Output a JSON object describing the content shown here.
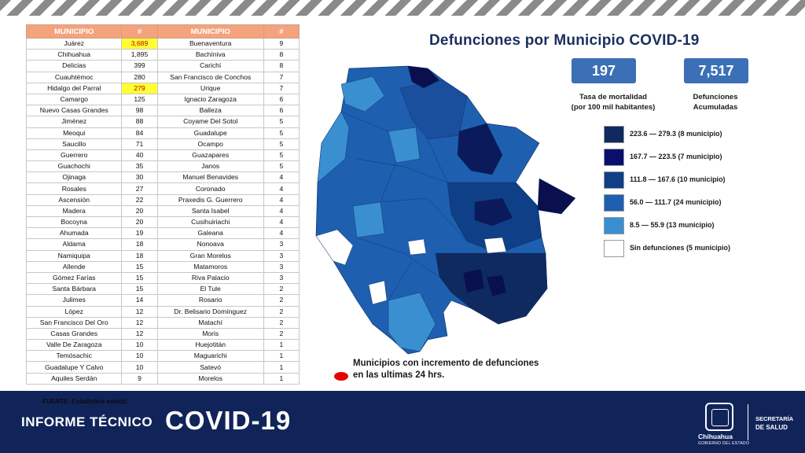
{
  "table": {
    "headers": [
      "MUNICIPIO",
      "#",
      "MUNICIPIO",
      "#"
    ],
    "rows": [
      [
        "Juárez",
        "3,689",
        "Buenaventura",
        "9"
      ],
      [
        "Chihuahua",
        "1,895",
        "Bachíniva",
        "8"
      ],
      [
        "Delicias",
        "399",
        "Carichí",
        "8"
      ],
      [
        "Cuauhtémoc",
        "280",
        "San Francisco de Conchos",
        "7"
      ],
      [
        "Hidalgo del Parral",
        "279",
        "Urique",
        "7"
      ],
      [
        "Camargo",
        "125",
        "Ignacio Zaragoza",
        "6"
      ],
      [
        "Nuevo Casas Grandes",
        "98",
        "Balleza",
        "6"
      ],
      [
        "Jiménez",
        "88",
        "Coyame Del Sotol",
        "5"
      ],
      [
        "Meoqui",
        "84",
        "Guadalupe",
        "5"
      ],
      [
        "Saucillo",
        "71",
        "Ocampo",
        "5"
      ],
      [
        "Guerrero",
        "40",
        "Guazapares",
        "5"
      ],
      [
        "Guachochi",
        "35",
        "Janos",
        "5"
      ],
      [
        "Ojinaga",
        "30",
        "Manuel Benavides",
        "4"
      ],
      [
        "Rosales",
        "27",
        "Coronado",
        "4"
      ],
      [
        "Ascensión",
        "22",
        "Praxedis G. Guerrero",
        "4"
      ],
      [
        "Madera",
        "20",
        "Santa Isabel",
        "4"
      ],
      [
        "Bocoyna",
        "20",
        "Cusihuiriachi",
        "4"
      ],
      [
        "Ahumada",
        "19",
        "Galeana",
        "4"
      ],
      [
        "Aldama",
        "18",
        "Nonoava",
        "3"
      ],
      [
        "Namiquipa",
        "18",
        "Gran Morelos",
        "3"
      ],
      [
        "Allende",
        "15",
        "Matamoros",
        "3"
      ],
      [
        "Gómez Farías",
        "15",
        "Riva Palacio",
        "3"
      ],
      [
        "Santa Bárbara",
        "15",
        "El Tule",
        "2"
      ],
      [
        "Julimes",
        "14",
        "Rosario",
        "2"
      ],
      [
        "López",
        "12",
        "Dr. Belisario Domínguez",
        "2"
      ],
      [
        "San Francisco Del Oro",
        "12",
        "Matachí",
        "2"
      ],
      [
        "Casas Grandes",
        "12",
        "Moris",
        "2"
      ],
      [
        "Valle De Zaragoza",
        "10",
        "Huejotitán",
        "1"
      ],
      [
        "Temósachic",
        "10",
        "Maguarichi",
        "1"
      ],
      [
        "Guadalupe Y Calvo",
        "10",
        "Satevó",
        "1"
      ],
      [
        "Aquiles Serdán",
        "9",
        "Morelos",
        "1"
      ]
    ],
    "highlighted": [
      "0-1",
      "4-1"
    ]
  },
  "title": "Defunciones por Municipio COVID-19",
  "kpis": {
    "rate_value": "197",
    "rate_label_1": "Tasa de mortalidad",
    "rate_label_2": "(por 100 mil habitantes)",
    "deaths_value": "7,517",
    "deaths_label_1": "Defunciones",
    "deaths_label_2": "Acumuladas"
  },
  "legend": [
    {
      "label": "223.6 — 279.3 (8 municipio)",
      "color": "#0f2a5e"
    },
    {
      "label": "167.7 — 223.5 (7 municipio)",
      "color": "#0a0f6e"
    },
    {
      "label": "111.8 — 167.6 (10 municipio)",
      "color": "#0f3f86"
    },
    {
      "label": "56.0 — 111.7 (24 municipio)",
      "color": "#1e5fb0"
    },
    {
      "label": "8.5 — 55.9 (13 municipio)",
      "color": "#3a8fd0"
    },
    {
      "label": "Sin defunciones (5 municipio)",
      "color": "#ffffff"
    }
  ],
  "note_line1": "Municipios con incremento de defunciones",
  "note_line2": "en las ultimas 24 hrs.",
  "source": "FUENTE: Estadística estatal.",
  "report_label": "INFORME TÉCNICO",
  "report_title": "COVID-19",
  "logo": {
    "org": "Chihuahua",
    "org_sub": "GOBIERNO DEL ESTADO",
    "sec_1": "SECRETARÍA",
    "sec_2": "DE SALUD"
  },
  "colors": {
    "header": "#f4a37c",
    "footer": "#11245a",
    "kpi": "#3b6fb6",
    "title": "#1b2f5e",
    "highlight": "#ffff33"
  }
}
